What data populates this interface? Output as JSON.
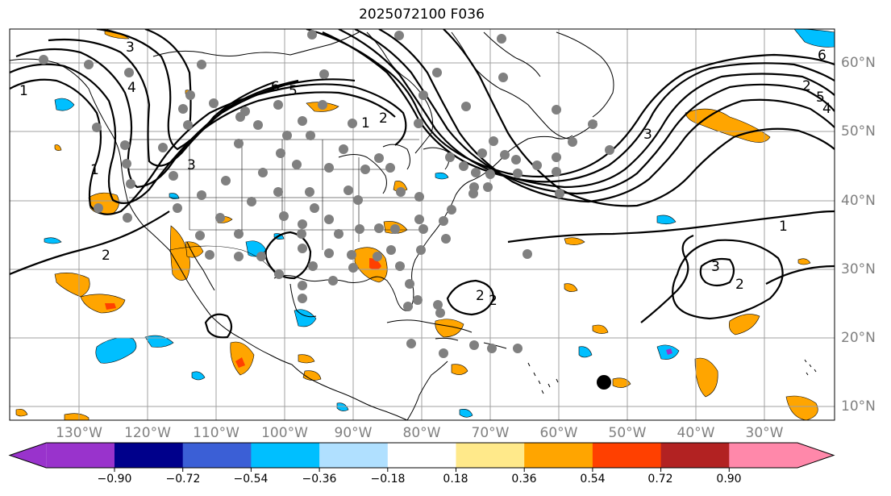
{
  "title": "2025072100 F036",
  "longitude_labels": [
    "130°W",
    "120°W",
    "110°W",
    "100°W",
    "90°W",
    "80°W",
    "70°W",
    "60°W",
    "50°W",
    "40°W",
    "30°W"
  ],
  "latitude_labels": [
    "60°N",
    "50°N",
    "40°N",
    "30°N",
    "20°N",
    "10°N"
  ],
  "colorbar": {
    "tick_labels": [
      "−0.90",
      "−0.72",
      "−0.54",
      "−0.36",
      "−0.18",
      "0.18",
      "0.36",
      "0.54",
      "0.72",
      "0.90"
    ],
    "colors": [
      "#9933cc",
      "#00008b",
      "#3b5fd6",
      "#00bfff",
      "#b0e0ff",
      "#ffffff",
      "#ffe98a",
      "#ffa500",
      "#ff4000",
      "#b22222",
      "#ff88aa"
    ],
    "lower_extend_color": "#9933cc",
    "upper_extend_color": "#ff88aa"
  },
  "contour_labels": [
    "1",
    "2",
    "3",
    "4",
    "5",
    "6",
    "1",
    "2",
    "3",
    "1",
    "2",
    "3",
    "2",
    "1",
    "2",
    "3",
    "4",
    "5",
    "6",
    "2"
  ],
  "colors": {
    "land_outline": "#000000",
    "grid": "#a0a0a0",
    "station_marker": "#808080",
    "highlight_marker": "#000000"
  }
}
